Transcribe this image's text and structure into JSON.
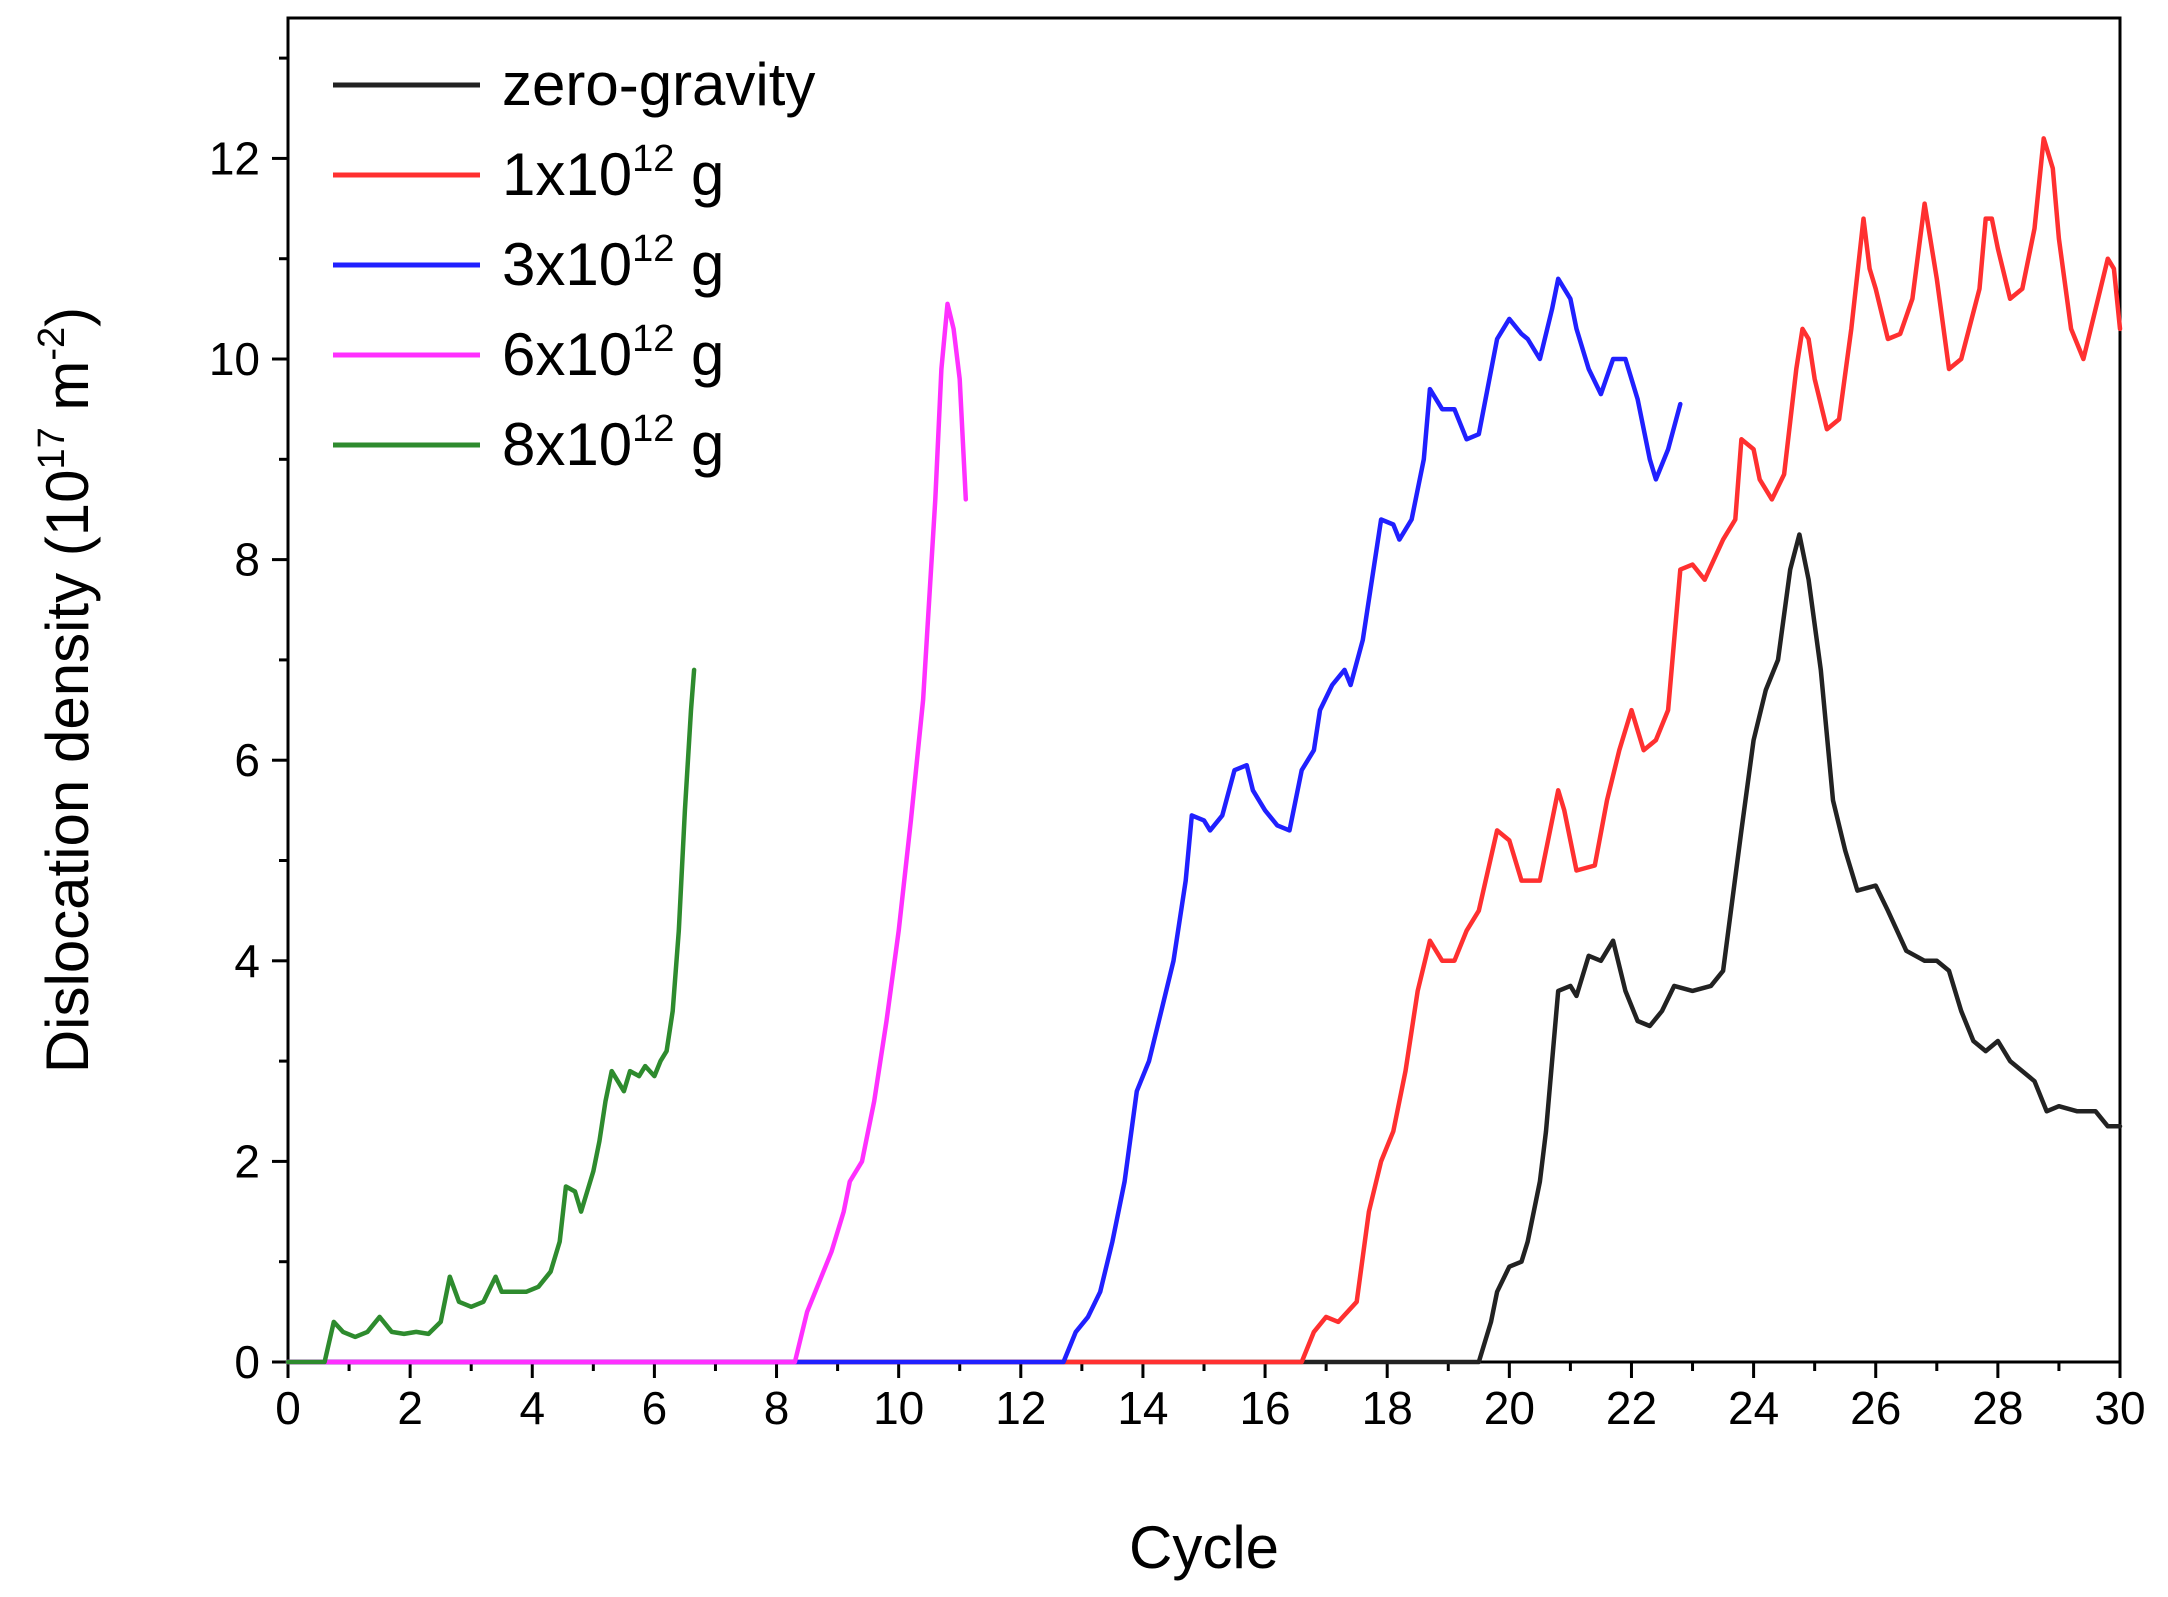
{
  "chart_data": {
    "type": "line",
    "title": "",
    "xlabel": "Cycle",
    "ylabel_main": "Dislocation density (10",
    "ylabel_exp": "17",
    "ylabel_unit": " m",
    "ylabel_unit_exp": "-2",
    "ylabel_close": ")",
    "xlim": [
      0,
      30
    ],
    "ylim": [
      0,
      13.4
    ],
    "xticks": [
      "0",
      "2",
      "4",
      "6",
      "8",
      "10",
      "12",
      "14",
      "16",
      "18",
      "20",
      "22",
      "24",
      "26",
      "28",
      "30"
    ],
    "yticks": [
      "0",
      "2",
      "4",
      "6",
      "8",
      "10",
      "12"
    ],
    "legend_position": "top-left",
    "series": [
      {
        "name": "zero-gravity",
        "label_parts": [
          "zero-gravity",
          "",
          ""
        ],
        "color": "#222222",
        "points": [
          [
            0,
            0
          ],
          [
            19.5,
            0
          ],
          [
            19.7,
            0.4
          ],
          [
            19.8,
            0.7
          ],
          [
            20.0,
            0.95
          ],
          [
            20.2,
            1.0
          ],
          [
            20.3,
            1.2
          ],
          [
            20.5,
            1.8
          ],
          [
            20.6,
            2.3
          ],
          [
            20.7,
            3.0
          ],
          [
            20.8,
            3.7
          ],
          [
            21.0,
            3.75
          ],
          [
            21.1,
            3.65
          ],
          [
            21.3,
            4.05
          ],
          [
            21.5,
            4.0
          ],
          [
            21.7,
            4.2
          ],
          [
            21.9,
            3.7
          ],
          [
            22.1,
            3.4
          ],
          [
            22.3,
            3.35
          ],
          [
            22.5,
            3.5
          ],
          [
            22.7,
            3.75
          ],
          [
            23.0,
            3.7
          ],
          [
            23.3,
            3.75
          ],
          [
            23.5,
            3.9
          ],
          [
            23.8,
            5.3
          ],
          [
            24.0,
            6.2
          ],
          [
            24.2,
            6.7
          ],
          [
            24.4,
            7.0
          ],
          [
            24.6,
            7.9
          ],
          [
            24.75,
            8.25
          ],
          [
            24.9,
            7.8
          ],
          [
            25.1,
            6.9
          ],
          [
            25.3,
            5.6
          ],
          [
            25.5,
            5.1
          ],
          [
            25.7,
            4.7
          ],
          [
            26.0,
            4.75
          ],
          [
            26.2,
            4.5
          ],
          [
            26.5,
            4.1
          ],
          [
            26.8,
            4.0
          ],
          [
            27.0,
            4.0
          ],
          [
            27.2,
            3.9
          ],
          [
            27.4,
            3.5
          ],
          [
            27.6,
            3.2
          ],
          [
            27.8,
            3.1
          ],
          [
            28.0,
            3.2
          ],
          [
            28.2,
            3.0
          ],
          [
            28.4,
            2.9
          ],
          [
            28.6,
            2.8
          ],
          [
            28.8,
            2.5
          ],
          [
            29.0,
            2.55
          ],
          [
            29.3,
            2.5
          ],
          [
            29.6,
            2.5
          ],
          [
            29.8,
            2.35
          ],
          [
            30.0,
            2.35
          ]
        ]
      },
      {
        "name": "1x10^12 g",
        "label_parts": [
          "1x10",
          "12",
          " g"
        ],
        "color": "#ff3030",
        "points": [
          [
            0,
            0
          ],
          [
            16.6,
            0
          ],
          [
            16.8,
            0.3
          ],
          [
            17.0,
            0.45
          ],
          [
            17.2,
            0.4
          ],
          [
            17.5,
            0.6
          ],
          [
            17.7,
            1.5
          ],
          [
            17.9,
            2.0
          ],
          [
            18.1,
            2.3
          ],
          [
            18.3,
            2.9
          ],
          [
            18.5,
            3.7
          ],
          [
            18.7,
            4.2
          ],
          [
            18.9,
            4.0
          ],
          [
            19.1,
            4.0
          ],
          [
            19.3,
            4.3
          ],
          [
            19.5,
            4.5
          ],
          [
            19.8,
            5.3
          ],
          [
            20.0,
            5.2
          ],
          [
            20.2,
            4.8
          ],
          [
            20.5,
            4.8
          ],
          [
            20.8,
            5.7
          ],
          [
            20.9,
            5.5
          ],
          [
            21.1,
            4.9
          ],
          [
            21.4,
            4.95
          ],
          [
            21.6,
            5.6
          ],
          [
            21.8,
            6.1
          ],
          [
            22.0,
            6.5
          ],
          [
            22.2,
            6.1
          ],
          [
            22.4,
            6.2
          ],
          [
            22.6,
            6.5
          ],
          [
            22.8,
            7.9
          ],
          [
            23.0,
            7.95
          ],
          [
            23.2,
            7.8
          ],
          [
            23.5,
            8.2
          ],
          [
            23.7,
            8.4
          ],
          [
            23.8,
            9.2
          ],
          [
            24.0,
            9.1
          ],
          [
            24.1,
            8.8
          ],
          [
            24.3,
            8.6
          ],
          [
            24.5,
            8.85
          ],
          [
            24.7,
            9.9
          ],
          [
            24.8,
            10.3
          ],
          [
            24.9,
            10.2
          ],
          [
            25.0,
            9.8
          ],
          [
            25.2,
            9.3
          ],
          [
            25.4,
            9.4
          ],
          [
            25.6,
            10.3
          ],
          [
            25.8,
            11.4
          ],
          [
            25.9,
            10.9
          ],
          [
            26.0,
            10.7
          ],
          [
            26.2,
            10.2
          ],
          [
            26.4,
            10.25
          ],
          [
            26.6,
            10.6
          ],
          [
            26.8,
            11.55
          ],
          [
            27.0,
            10.8
          ],
          [
            27.2,
            9.9
          ],
          [
            27.4,
            10.0
          ],
          [
            27.7,
            10.7
          ],
          [
            27.8,
            11.4
          ],
          [
            27.9,
            11.4
          ],
          [
            28.0,
            11.1
          ],
          [
            28.2,
            10.6
          ],
          [
            28.4,
            10.7
          ],
          [
            28.6,
            11.3
          ],
          [
            28.75,
            12.2
          ],
          [
            28.9,
            11.9
          ],
          [
            29.0,
            11.2
          ],
          [
            29.2,
            10.3
          ],
          [
            29.4,
            10.0
          ],
          [
            29.6,
            10.5
          ],
          [
            29.8,
            11.0
          ],
          [
            29.9,
            10.9
          ],
          [
            30.0,
            10.3
          ]
        ]
      },
      {
        "name": "3x10^12 g",
        "label_parts": [
          "3x10",
          "12",
          " g"
        ],
        "color": "#2020ff",
        "points": [
          [
            0,
            0
          ],
          [
            12.7,
            0
          ],
          [
            12.9,
            0.3
          ],
          [
            13.1,
            0.45
          ],
          [
            13.3,
            0.7
          ],
          [
            13.5,
            1.2
          ],
          [
            13.7,
            1.8
          ],
          [
            13.9,
            2.7
          ],
          [
            14.1,
            3.0
          ],
          [
            14.3,
            3.5
          ],
          [
            14.5,
            4.0
          ],
          [
            14.7,
            4.8
          ],
          [
            14.8,
            5.45
          ],
          [
            15.0,
            5.4
          ],
          [
            15.1,
            5.3
          ],
          [
            15.3,
            5.45
          ],
          [
            15.5,
            5.9
          ],
          [
            15.7,
            5.95
          ],
          [
            15.8,
            5.7
          ],
          [
            16.0,
            5.5
          ],
          [
            16.2,
            5.35
          ],
          [
            16.4,
            5.3
          ],
          [
            16.6,
            5.9
          ],
          [
            16.8,
            6.1
          ],
          [
            16.9,
            6.5
          ],
          [
            17.1,
            6.75
          ],
          [
            17.3,
            6.9
          ],
          [
            17.4,
            6.75
          ],
          [
            17.6,
            7.2
          ],
          [
            17.7,
            7.6
          ],
          [
            17.9,
            8.4
          ],
          [
            18.1,
            8.35
          ],
          [
            18.2,
            8.2
          ],
          [
            18.4,
            8.4
          ],
          [
            18.6,
            9.0
          ],
          [
            18.7,
            9.7
          ],
          [
            18.9,
            9.5
          ],
          [
            19.1,
            9.5
          ],
          [
            19.3,
            9.2
          ],
          [
            19.5,
            9.25
          ],
          [
            19.8,
            10.2
          ],
          [
            20.0,
            10.4
          ],
          [
            20.2,
            10.25
          ],
          [
            20.3,
            10.2
          ],
          [
            20.5,
            10.0
          ],
          [
            20.7,
            10.5
          ],
          [
            20.8,
            10.8
          ],
          [
            21.0,
            10.6
          ],
          [
            21.1,
            10.3
          ],
          [
            21.3,
            9.9
          ],
          [
            21.5,
            9.65
          ],
          [
            21.7,
            10.0
          ],
          [
            21.9,
            10.0
          ],
          [
            22.1,
            9.6
          ],
          [
            22.3,
            9.0
          ],
          [
            22.4,
            8.8
          ],
          [
            22.6,
            9.1
          ],
          [
            22.8,
            9.55
          ]
        ]
      },
      {
        "name": "6x10^12 g",
        "label_parts": [
          "6x10",
          "12",
          " g"
        ],
        "color": "#ff30ff",
        "points": [
          [
            0,
            0
          ],
          [
            8.3,
            0
          ],
          [
            8.5,
            0.5
          ],
          [
            8.7,
            0.8
          ],
          [
            8.9,
            1.1
          ],
          [
            9.1,
            1.5
          ],
          [
            9.2,
            1.8
          ],
          [
            9.4,
            2.0
          ],
          [
            9.6,
            2.6
          ],
          [
            9.8,
            3.4
          ],
          [
            10.0,
            4.3
          ],
          [
            10.2,
            5.4
          ],
          [
            10.4,
            6.6
          ],
          [
            10.6,
            8.6
          ],
          [
            10.7,
            9.9
          ],
          [
            10.8,
            10.55
          ],
          [
            10.9,
            10.3
          ],
          [
            11.0,
            9.8
          ],
          [
            11.1,
            8.6
          ]
        ]
      },
      {
        "name": "8x10^12 g",
        "label_parts": [
          "8x10",
          "12",
          " g"
        ],
        "color": "#2e8b2e",
        "points": [
          [
            0,
            0
          ],
          [
            0.6,
            0
          ],
          [
            0.75,
            0.4
          ],
          [
            0.9,
            0.3
          ],
          [
            1.1,
            0.25
          ],
          [
            1.3,
            0.3
          ],
          [
            1.5,
            0.45
          ],
          [
            1.7,
            0.3
          ],
          [
            1.9,
            0.28
          ],
          [
            2.1,
            0.3
          ],
          [
            2.3,
            0.28
          ],
          [
            2.5,
            0.4
          ],
          [
            2.65,
            0.85
          ],
          [
            2.8,
            0.6
          ],
          [
            3.0,
            0.55
          ],
          [
            3.2,
            0.6
          ],
          [
            3.4,
            0.85
          ],
          [
            3.5,
            0.7
          ],
          [
            3.7,
            0.7
          ],
          [
            3.9,
            0.7
          ],
          [
            4.1,
            0.75
          ],
          [
            4.3,
            0.9
          ],
          [
            4.45,
            1.2
          ],
          [
            4.55,
            1.75
          ],
          [
            4.7,
            1.7
          ],
          [
            4.8,
            1.5
          ],
          [
            5.0,
            1.9
          ],
          [
            5.1,
            2.2
          ],
          [
            5.2,
            2.6
          ],
          [
            5.3,
            2.9
          ],
          [
            5.5,
            2.7
          ],
          [
            5.6,
            2.9
          ],
          [
            5.75,
            2.85
          ],
          [
            5.85,
            2.95
          ],
          [
            6.0,
            2.85
          ],
          [
            6.1,
            3.0
          ],
          [
            6.2,
            3.1
          ],
          [
            6.3,
            3.5
          ],
          [
            6.4,
            4.3
          ],
          [
            6.5,
            5.5
          ],
          [
            6.6,
            6.5
          ],
          [
            6.65,
            6.9
          ]
        ]
      }
    ]
  }
}
